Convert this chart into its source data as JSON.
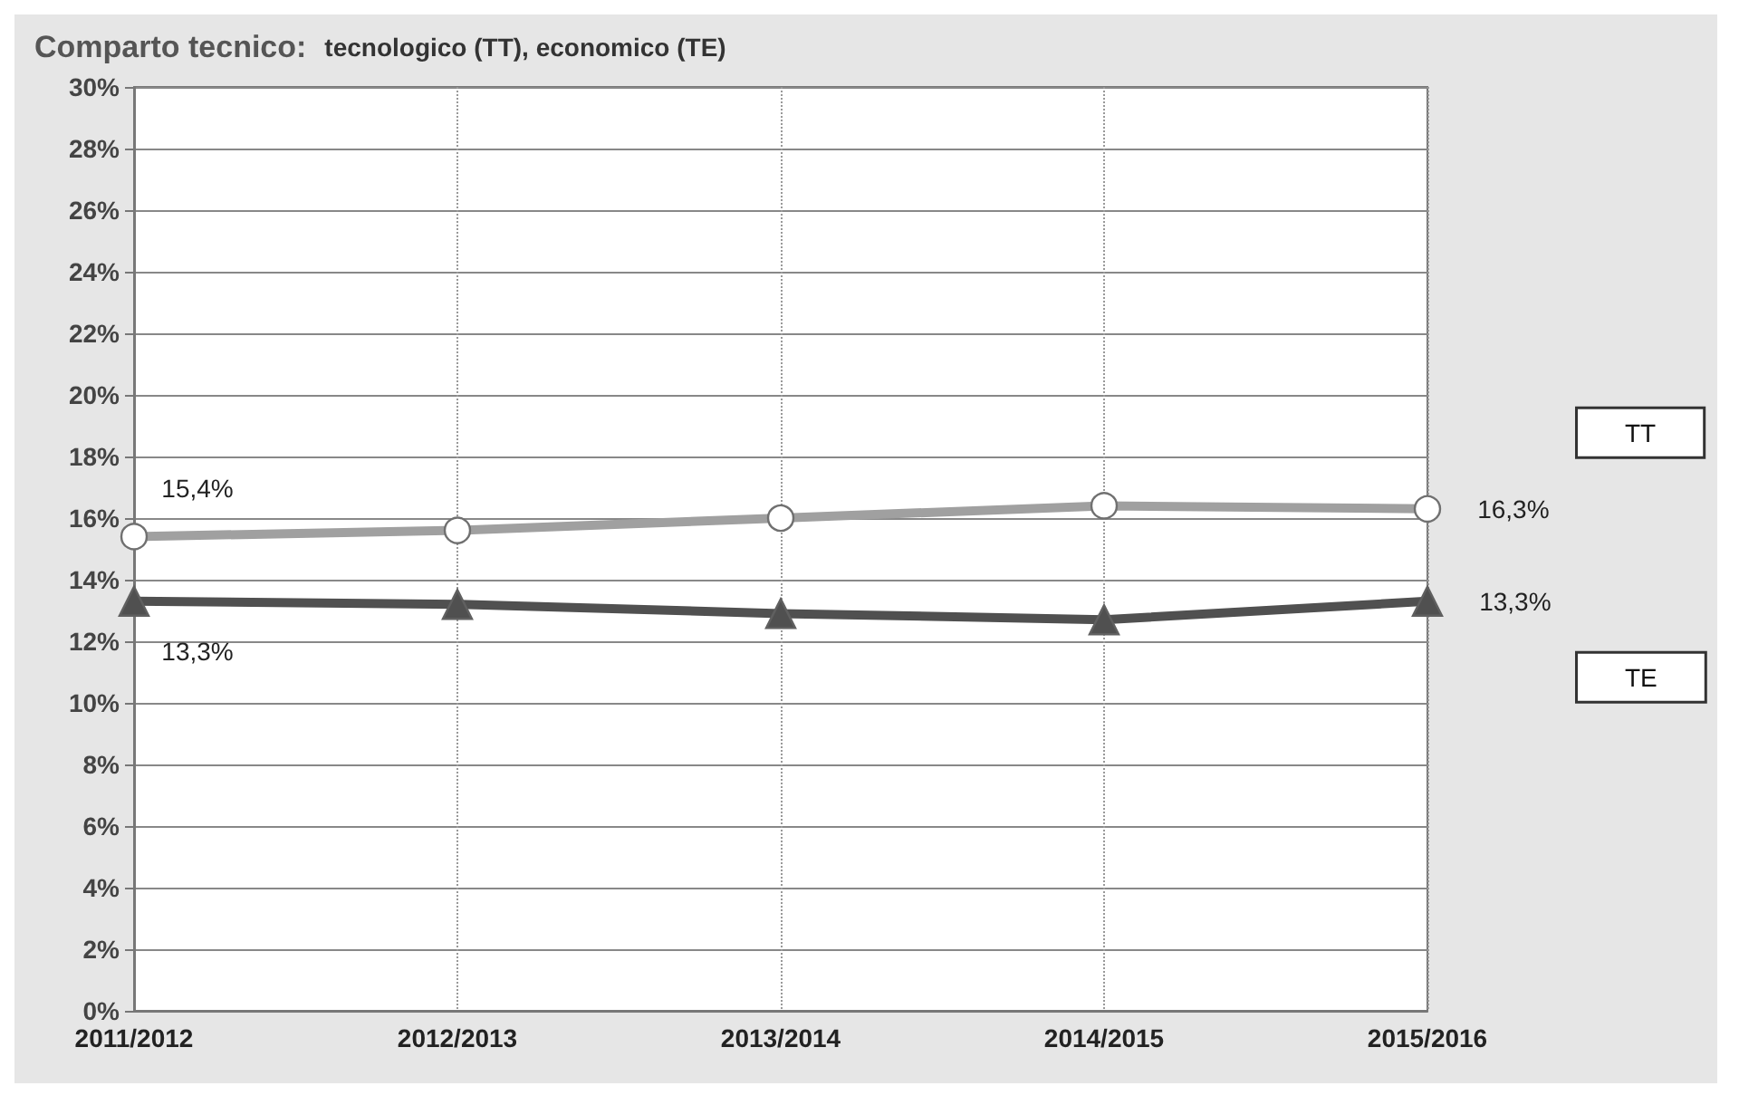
{
  "chart_data": {
    "type": "line",
    "title": "Comparto tecnico:",
    "subtitle": "tecnologico (TT), economico (TE)",
    "categories": [
      "2011/2012",
      "2012/2013",
      "2013/2014",
      "2014/2015",
      "2015/2016"
    ],
    "series": [
      {
        "name": "TT",
        "color": "#a0a0a0",
        "marker": "circle",
        "values": [
          15.4,
          15.6,
          16.0,
          16.4,
          16.3
        ],
        "value_labels": [
          "15,4%",
          null,
          null,
          null,
          "16,3%"
        ]
      },
      {
        "name": "TE",
        "color": "#505050",
        "marker": "triangle",
        "values": [
          13.3,
          13.2,
          12.9,
          12.7,
          13.3
        ],
        "value_labels": [
          "13,3%",
          null,
          null,
          null,
          "13,3%"
        ]
      }
    ],
    "ylim": [
      0,
      30
    ],
    "yticks": [
      {
        "value": 0,
        "label": "0%"
      },
      {
        "value": 2,
        "label": "2%"
      },
      {
        "value": 4,
        "label": "4%"
      },
      {
        "value": 6,
        "label": "6%"
      },
      {
        "value": 8,
        "label": "8%"
      },
      {
        "value": 10,
        "label": "10%"
      },
      {
        "value": 12,
        "label": "12%"
      },
      {
        "value": 14,
        "label": "14%"
      },
      {
        "value": 16,
        "label": "16%"
      },
      {
        "value": 18,
        "label": "18%"
      },
      {
        "value": 20,
        "label": "20%"
      },
      {
        "value": 22,
        "label": "22%"
      },
      {
        "value": 24,
        "label": "24%"
      },
      {
        "value": 26,
        "label": "26%"
      },
      {
        "value": 28,
        "label": "28%"
      },
      {
        "value": 30,
        "label": "30%"
      }
    ],
    "grid": true,
    "legend": false,
    "line_style": "solid"
  }
}
